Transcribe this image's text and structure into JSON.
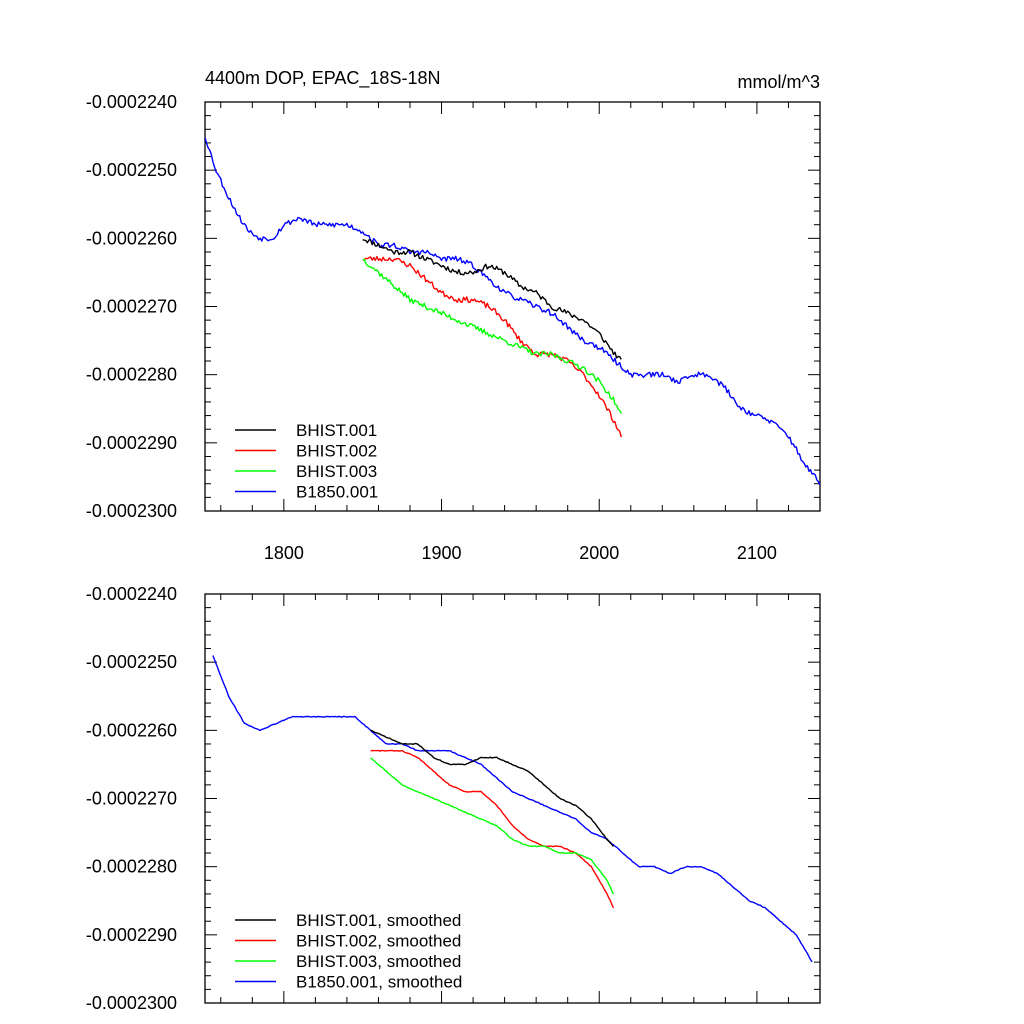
{
  "figure": {
    "title": "4400m DOP, EPAC_18S-18N",
    "units": "mmol/m^3"
  },
  "chart_data": [
    {
      "type": "line",
      "panel": "top",
      "title": "4400m DOP, EPAC_18S-18N",
      "units_label": "mmol/m^3",
      "xlabel": "",
      "ylabel": "",
      "xlim": [
        1750,
        2140
      ],
      "ylim": [
        -0.00023,
        -0.000224
      ],
      "xticks": [
        1800,
        1900,
        2000,
        2100
      ],
      "yticks": [
        -0.000224,
        -0.000225,
        -0.000226,
        -0.000227,
        -0.000228,
        -0.000229,
        -0.00023
      ],
      "ytick_labels": [
        "-0.0002240",
        "-0.0002250",
        "-0.0002260",
        "-0.0002270",
        "-0.0002280",
        "-0.0002290",
        "-0.0002300"
      ],
      "xtick_labels": [
        "1800",
        "1900",
        "2000",
        "2100"
      ],
      "legend_position": "bottom-left",
      "series": [
        {
          "name": "BHIST.001",
          "color": "#000000",
          "noise": 4e-08,
          "seed": 11,
          "x": [
            1850,
            1860,
            1870,
            1880,
            1890,
            1900,
            1910,
            1920,
            1930,
            1940,
            1950,
            1960,
            1970,
            1980,
            1990,
            2000,
            2010,
            2014
          ],
          "y": [
            -0.000226,
            -0.0002261,
            -0.0002262,
            -0.0002262,
            -0.0002263,
            -0.0002264,
            -0.0002265,
            -0.0002265,
            -0.0002264,
            -0.0002265,
            -0.0002267,
            -0.0002268,
            -0.000227,
            -0.0002271,
            -0.0002272,
            -0.0002274,
            -0.0002277,
            -0.0002278
          ]
        },
        {
          "name": "BHIST.002",
          "color": "#ff0000",
          "noise": 4e-08,
          "seed": 23,
          "x": [
            1850,
            1860,
            1870,
            1880,
            1890,
            1900,
            1910,
            1920,
            1930,
            1940,
            1950,
            1960,
            1970,
            1980,
            1990,
            2000,
            2010,
            2014
          ],
          "y": [
            -0.0002263,
            -0.0002263,
            -0.0002263,
            -0.0002264,
            -0.0002266,
            -0.0002268,
            -0.0002269,
            -0.0002269,
            -0.000227,
            -0.0002272,
            -0.0002275,
            -0.0002277,
            -0.0002277,
            -0.0002278,
            -0.000228,
            -0.0002283,
            -0.0002287,
            -0.0002289
          ]
        },
        {
          "name": "BHIST.003",
          "color": "#00ff00",
          "noise": 4e-08,
          "seed": 37,
          "x": [
            1850,
            1860,
            1870,
            1880,
            1890,
            1900,
            1910,
            1920,
            1930,
            1940,
            1950,
            1960,
            1970,
            1980,
            1990,
            2000,
            2010,
            2014
          ],
          "y": [
            -0.0002263,
            -0.0002265,
            -0.0002267,
            -0.0002269,
            -0.000227,
            -0.0002271,
            -0.0002272,
            -0.0002273,
            -0.0002274,
            -0.0002275,
            -0.0002276,
            -0.0002277,
            -0.0002277,
            -0.0002278,
            -0.0002279,
            -0.0002281,
            -0.0002284,
            -0.0002286
          ]
        },
        {
          "name": "B1850.001",
          "color": "#0000ff",
          "noise": 4e-08,
          "seed": 53,
          "x": [
            1750,
            1757,
            1765,
            1772,
            1778,
            1785,
            1793,
            1800,
            1810,
            1820,
            1830,
            1840,
            1850,
            1860,
            1870,
            1880,
            1890,
            1900,
            1910,
            1920,
            1930,
            1940,
            1950,
            1960,
            1970,
            1980,
            1990,
            2000,
            2010,
            2020,
            2030,
            2040,
            2050,
            2060,
            2070,
            2080,
            2090,
            2100,
            2110,
            2120,
            2130,
            2140
          ],
          "y": [
            -0.0002245,
            -0.000225,
            -0.0002254,
            -0.0002257,
            -0.0002259,
            -0.000226,
            -0.000226,
            -0.0002258,
            -0.0002257,
            -0.0002258,
            -0.0002258,
            -0.0002258,
            -0.0002259,
            -0.0002261,
            -0.0002261,
            -0.0002262,
            -0.0002262,
            -0.0002263,
            -0.0002263,
            -0.0002264,
            -0.0002266,
            -0.0002268,
            -0.0002269,
            -0.000227,
            -0.0002271,
            -0.0002273,
            -0.0002275,
            -0.0002276,
            -0.0002278,
            -0.000228,
            -0.000228,
            -0.000228,
            -0.0002281,
            -0.000228,
            -0.000228,
            -0.0002282,
            -0.0002285,
            -0.0002286,
            -0.0002287,
            -0.0002289,
            -0.0002293,
            -0.0002296
          ]
        }
      ]
    },
    {
      "type": "line",
      "panel": "bottom",
      "title": "",
      "xlabel": "",
      "ylabel": "",
      "xlim": [
        1750,
        2140
      ],
      "ylim": [
        -0.00023,
        -0.000224
      ],
      "xticks": [
        1800,
        1900,
        2000,
        2100
      ],
      "yticks": [
        -0.000224,
        -0.000225,
        -0.000226,
        -0.000227,
        -0.000228,
        -0.000229,
        -0.00023
      ],
      "ytick_labels": [
        "-0.0002240",
        "-0.0002250",
        "-0.0002260",
        "-0.0002270",
        "-0.0002280",
        "-0.0002290",
        "-0.0002300"
      ],
      "legend_position": "bottom-left",
      "series": [
        {
          "name": "BHIST.001, smoothed",
          "color": "#000000",
          "noise": 6e-09,
          "seed": 71,
          "x": [
            1855,
            1865,
            1875,
            1885,
            1895,
            1905,
            1915,
            1925,
            1935,
            1945,
            1955,
            1965,
            1975,
            1985,
            1995,
            2005,
            2009
          ],
          "y": [
            -0.000226,
            -0.0002261,
            -0.0002262,
            -0.0002262,
            -0.0002264,
            -0.0002265,
            -0.0002265,
            -0.0002264,
            -0.0002264,
            -0.0002265,
            -0.0002266,
            -0.0002268,
            -0.000227,
            -0.0002271,
            -0.0002273,
            -0.0002276,
            -0.0002277
          ]
        },
        {
          "name": "BHIST.002, smoothed",
          "color": "#ff0000",
          "noise": 6e-09,
          "seed": 83,
          "x": [
            1855,
            1865,
            1875,
            1885,
            1895,
            1905,
            1915,
            1925,
            1935,
            1945,
            1955,
            1965,
            1975,
            1985,
            1995,
            2005,
            2009
          ],
          "y": [
            -0.0002263,
            -0.0002263,
            -0.0002263,
            -0.0002264,
            -0.0002266,
            -0.0002268,
            -0.0002269,
            -0.0002269,
            -0.0002271,
            -0.0002274,
            -0.0002276,
            -0.0002277,
            -0.0002277,
            -0.0002278,
            -0.000228,
            -0.0002284,
            -0.0002286
          ]
        },
        {
          "name": "BHIST.003, smoothed",
          "color": "#00ff00",
          "noise": 6e-09,
          "seed": 97,
          "x": [
            1855,
            1865,
            1875,
            1885,
            1895,
            1905,
            1915,
            1925,
            1935,
            1945,
            1955,
            1965,
            1975,
            1985,
            1995,
            2005,
            2009
          ],
          "y": [
            -0.0002264,
            -0.0002266,
            -0.0002268,
            -0.0002269,
            -0.000227,
            -0.0002271,
            -0.0002272,
            -0.0002273,
            -0.0002274,
            -0.0002276,
            -0.0002277,
            -0.0002277,
            -0.0002278,
            -0.0002278,
            -0.0002279,
            -0.0002282,
            -0.0002284
          ]
        },
        {
          "name": "B1850.001, smoothed",
          "color": "#0000ff",
          "noise": 6e-09,
          "seed": 109,
          "x": [
            1755,
            1765,
            1775,
            1785,
            1795,
            1805,
            1815,
            1825,
            1835,
            1845,
            1855,
            1865,
            1875,
            1885,
            1895,
            1905,
            1915,
            1925,
            1935,
            1945,
            1955,
            1965,
            1975,
            1985,
            1995,
            2005,
            2015,
            2025,
            2035,
            2045,
            2055,
            2065,
            2075,
            2085,
            2095,
            2105,
            2115,
            2125,
            2135
          ],
          "y": [
            -0.0002249,
            -0.0002255,
            -0.0002259,
            -0.000226,
            -0.0002259,
            -0.0002258,
            -0.0002258,
            -0.0002258,
            -0.0002258,
            -0.0002258,
            -0.000226,
            -0.0002262,
            -0.0002262,
            -0.0002263,
            -0.0002263,
            -0.0002263,
            -0.0002264,
            -0.0002265,
            -0.0002267,
            -0.0002269,
            -0.000227,
            -0.0002271,
            -0.0002272,
            -0.0002273,
            -0.0002275,
            -0.0002276,
            -0.0002278,
            -0.000228,
            -0.000228,
            -0.0002281,
            -0.000228,
            -0.000228,
            -0.0002281,
            -0.0002283,
            -0.0002285,
            -0.0002286,
            -0.0002288,
            -0.000229,
            -0.0002294
          ]
        }
      ]
    }
  ]
}
